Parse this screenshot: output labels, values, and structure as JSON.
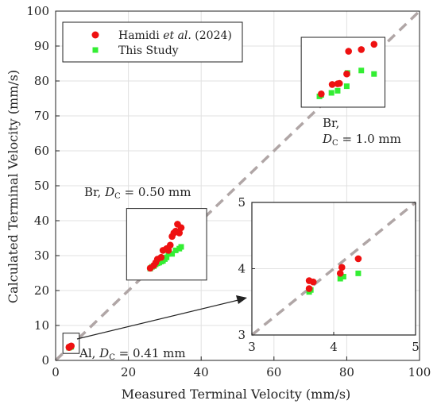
{
  "chart_data": {
    "type": "scatter",
    "xlabel": "Measured Terminal Velocity (mm/s)",
    "ylabel": "Calculated Terminal Velocity (mm/s)",
    "xlim": [
      0,
      100
    ],
    "ylim": [
      0,
      100
    ],
    "xticks": [
      "0",
      "20",
      "40",
      "60",
      "80",
      "100"
    ],
    "yticks": [
      "0",
      "10",
      "20",
      "30",
      "40",
      "50",
      "60",
      "70",
      "80",
      "90",
      "100"
    ],
    "grid": true,
    "legend_position": "top-left",
    "reference_line": "y = x (dashed, gray)",
    "series": [
      {
        "name_parts": [
          "Hamidi ",
          "et al.",
          " (2024)"
        ],
        "color": "#ee1111",
        "marker": "circle",
        "points": [
          [
            3.7,
            3.7
          ],
          [
            3.75,
            3.8
          ],
          [
            3.7,
            3.82
          ],
          [
            4.08,
            3.93
          ],
          [
            4.1,
            4.02
          ],
          [
            4.3,
            4.15
          ],
          [
            26.0,
            26.4
          ],
          [
            27.0,
            27.2
          ],
          [
            27.5,
            28.0
          ],
          [
            28.0,
            29.0
          ],
          [
            29.0,
            29.5
          ],
          [
            29.5,
            31.5
          ],
          [
            30.5,
            32.0
          ],
          [
            31.0,
            31.5
          ],
          [
            31.5,
            33.0
          ],
          [
            32.0,
            35.5
          ],
          [
            32.5,
            36.5
          ],
          [
            33.5,
            39.0
          ],
          [
            34.0,
            36.5
          ],
          [
            34.5,
            38.0
          ],
          [
            33.0,
            37.0
          ],
          [
            73.0,
            76.3
          ],
          [
            76.0,
            79.0
          ],
          [
            77.5,
            79.2
          ],
          [
            78.0,
            79.3
          ],
          [
            80.0,
            82.0
          ],
          [
            80.5,
            88.5
          ],
          [
            84.0,
            89.0
          ],
          [
            87.5,
            90.5
          ]
        ]
      },
      {
        "name": "This Study",
        "color": "#33ee33",
        "marker": "square",
        "points": [
          [
            3.7,
            3.65
          ],
          [
            3.72,
            3.68
          ],
          [
            4.08,
            3.85
          ],
          [
            4.12,
            3.88
          ],
          [
            4.3,
            3.93
          ],
          [
            26.0,
            26.3
          ],
          [
            26.5,
            26.8
          ],
          [
            27.0,
            27.0
          ],
          [
            27.5,
            27.5
          ],
          [
            28.0,
            27.8
          ],
          [
            28.5,
            28.0
          ],
          [
            29.0,
            28.3
          ],
          [
            29.5,
            28.5
          ],
          [
            30.0,
            29.0
          ],
          [
            30.5,
            29.5
          ],
          [
            31.0,
            30.5
          ],
          [
            32.0,
            30.5
          ],
          [
            33.0,
            31.5
          ],
          [
            34.0,
            32.0
          ],
          [
            34.5,
            32.5
          ],
          [
            72.5,
            75.6
          ],
          [
            73.0,
            76.0
          ],
          [
            75.8,
            76.6
          ],
          [
            77.5,
            77.2
          ],
          [
            80.0,
            78.5
          ],
          [
            80.2,
            82.3
          ],
          [
            84.0,
            83.0
          ],
          [
            87.5,
            82.0
          ]
        ]
      }
    ],
    "inset": {
      "xlim": [
        3,
        5
      ],
      "ylim": [
        3,
        5
      ],
      "xticks": [
        "3",
        "4",
        "5"
      ],
      "yticks": [
        "3",
        "4",
        "5"
      ],
      "grid": true
    },
    "annotations": {
      "br_small_prefix": "Br, ",
      "br_small_suffix": " = 0.50 mm",
      "br_large_line1": "Br,",
      "br_large_suffix": " = 1.0 mm",
      "al_prefix": "Al, ",
      "al_suffix": " = 0.41 mm",
      "dc_symbol": "D",
      "dc_subscript": "C"
    }
  }
}
